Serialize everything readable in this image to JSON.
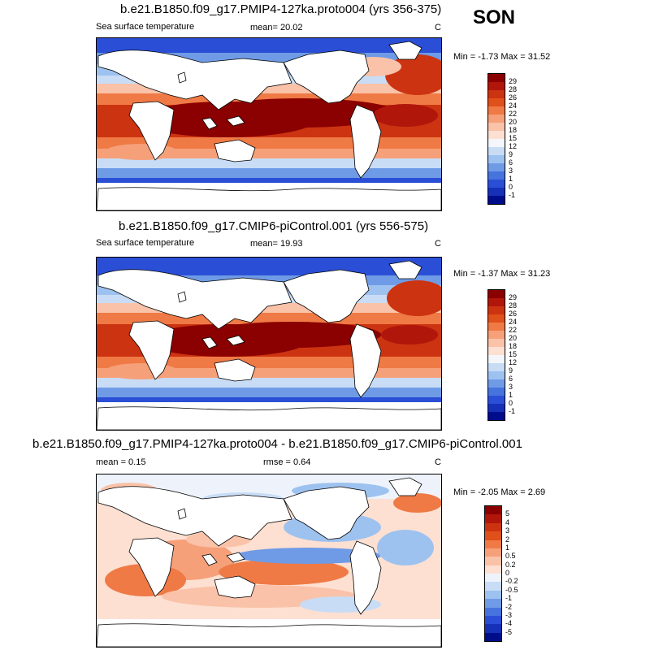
{
  "season": "SON",
  "panels": [
    {
      "title": "b.e21.B1850.f09_g17.PMIP4-127ka.proto004 (yrs 356-375)",
      "variable": "Sea surface temperature",
      "mean_text": "mean=  20.02",
      "units": "C",
      "minmax": "Min =  -1.73 Max =  31.52",
      "colorbar": {
        "labels": [
          "29",
          "28",
          "26",
          "24",
          "22",
          "20",
          "18",
          "15",
          "12",
          "9",
          "6",
          "3",
          "1",
          "0",
          "-1"
        ],
        "colors": [
          "#8b0000",
          "#b0160a",
          "#cc3311",
          "#e0501a",
          "#ef7a45",
          "#f6a07a",
          "#fac2a8",
          "#fde0d2",
          "#f3f6fb",
          "#c8dcf5",
          "#9ec2ef",
          "#6f9be6",
          "#4673de",
          "#2a4fd6",
          "#1630b8",
          "#000d8a"
        ]
      }
    },
    {
      "title": "b.e21.B1850.f09_g17.CMIP6-piControl.001 (yrs 556-575)",
      "variable": "Sea surface temperature",
      "mean_text": "mean=  19.93",
      "units": "C",
      "minmax": "Min =  -1.37 Max =  31.23",
      "colorbar": {
        "labels": [
          "29",
          "28",
          "26",
          "24",
          "22",
          "20",
          "18",
          "15",
          "12",
          "9",
          "6",
          "3",
          "1",
          "0",
          "-1"
        ],
        "colors": [
          "#8b0000",
          "#b0160a",
          "#cc3311",
          "#e0501a",
          "#ef7a45",
          "#f6a07a",
          "#fac2a8",
          "#fde0d2",
          "#f3f6fb",
          "#c8dcf5",
          "#9ec2ef",
          "#6f9be6",
          "#4673de",
          "#2a4fd6",
          "#1630b8",
          "#000d8a"
        ]
      }
    },
    {
      "title": "b.e21.B1850.f09_g17.PMIP4-127ka.proto004 - b.e21.B1850.f09_g17.CMIP6-piControl.001",
      "mean_text": "mean =   0.15",
      "rmse_text": "rmse =   0.64",
      "units": "C",
      "minmax": "Min =  -2.05 Max =   2.69",
      "colorbar": {
        "labels": [
          "5",
          "4",
          "3",
          "2",
          "1",
          "0.5",
          "0.2",
          "0",
          "-0.2",
          "-0.5",
          "-1",
          "-2",
          "-3",
          "-4",
          "-5"
        ],
        "colors": [
          "#8b0000",
          "#b0160a",
          "#cc3311",
          "#e0501a",
          "#ef7a45",
          "#f6a07a",
          "#fac2a8",
          "#fde0d2",
          "#eef3fb",
          "#c8dcf5",
          "#9ec2ef",
          "#6f9be6",
          "#4673de",
          "#2a4fd6",
          "#1630b8",
          "#000d8a"
        ]
      }
    }
  ]
}
